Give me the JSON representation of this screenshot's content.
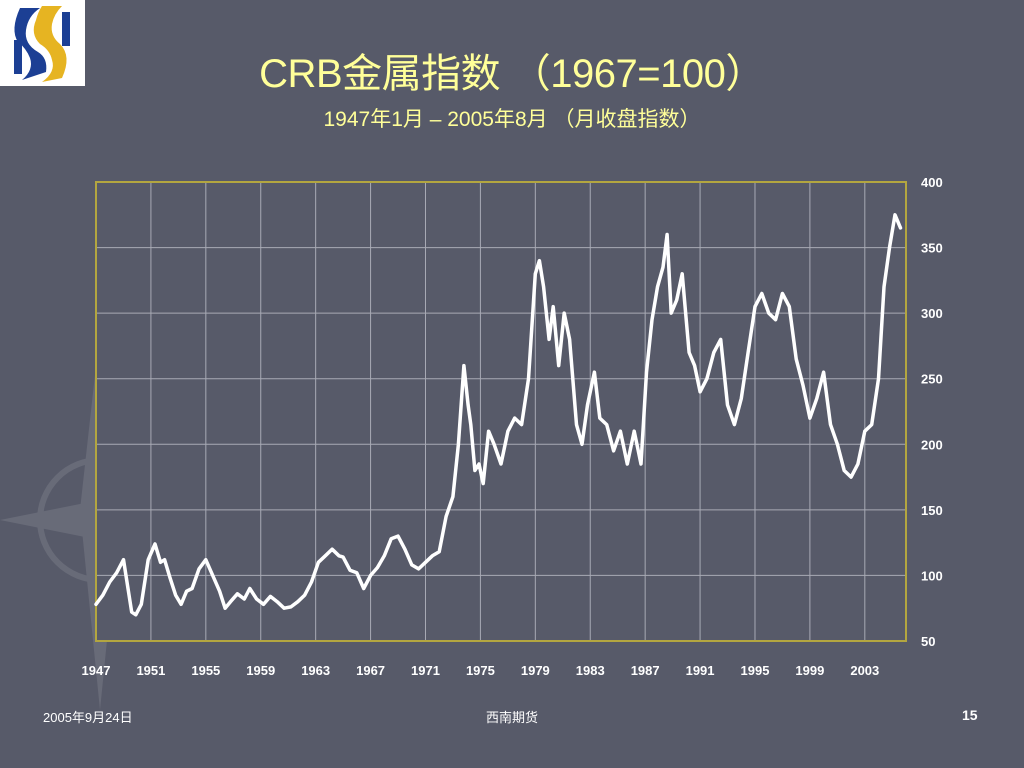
{
  "slide": {
    "title": "CRB金属指数 （1967=100）",
    "subtitle": "1947年1月 – 2005年8月 （月收盘指数）",
    "footer_date": "2005年9月24日",
    "footer_org": "西南期货",
    "page_number": "15"
  },
  "logo": {
    "icon": "company-s-logo-icon",
    "colors": [
      "#1c3f94",
      "#e6b422"
    ]
  },
  "colors": {
    "background": "#575a69",
    "title": "#ffff99",
    "frame": "#b3a640",
    "grid": "#a8aab5",
    "line": "#ffffff",
    "text": "#ffffff"
  },
  "chart_data": {
    "type": "line",
    "title": "CRB金属指数 （1967=100）",
    "subtitle": "1947年1月 – 2005年8月 （月收盘指数）",
    "xlabel": "",
    "ylabel": "",
    "xlim": [
      1947.0,
      2006.0
    ],
    "ylim": [
      50,
      400
    ],
    "x_ticks": [
      1947,
      1951,
      1955,
      1959,
      1963,
      1967,
      1971,
      1975,
      1979,
      1983,
      1987,
      1991,
      1995,
      1999,
      2003
    ],
    "y_ticks": [
      50,
      100,
      150,
      200,
      250,
      300,
      350,
      400
    ],
    "grid": true,
    "legend": "none",
    "series": [
      {
        "x": [
          1947.0,
          1947.5,
          1948.0,
          1948.5,
          1949.0,
          1949.6,
          1949.9,
          1950.3,
          1950.8,
          1951.3,
          1951.7,
          1952.0,
          1952.4,
          1952.8,
          1953.2,
          1953.6,
          1954.0,
          1954.5,
          1955.0,
          1955.5,
          1956.0,
          1956.4,
          1956.8,
          1957.3,
          1957.8,
          1958.2,
          1958.7,
          1959.2,
          1959.7,
          1960.2,
          1960.7,
          1961.2,
          1961.7,
          1962.2,
          1962.7,
          1963.2,
          1963.7,
          1964.2,
          1964.7,
          1965.0,
          1965.5,
          1966.0,
          1966.5,
          1967.0,
          1967.5,
          1968.0,
          1968.5,
          1969.0,
          1969.5,
          1970.0,
          1970.5,
          1971.0,
          1971.5,
          1972.0,
          1972.5,
          1973.0,
          1973.4,
          1973.8,
          1974.1,
          1974.3,
          1974.6,
          1974.9,
          1975.2,
          1975.6,
          1976.0,
          1976.5,
          1977.0,
          1977.5,
          1978.0,
          1978.5,
          1979.0,
          1979.3,
          1979.6,
          1980.0,
          1980.3,
          1980.7,
          1981.1,
          1981.5,
          1982.0,
          1982.4,
          1982.8,
          1983.3,
          1983.7,
          1984.2,
          1984.7,
          1985.2,
          1985.7,
          1986.2,
          1986.7,
          1987.1,
          1987.5,
          1987.9,
          1988.3,
          1988.6,
          1988.9,
          1989.3,
          1989.7,
          1990.2,
          1990.6,
          1991.0,
          1991.5,
          1992.0,
          1992.5,
          1993.0,
          1993.5,
          1994.0,
          1994.5,
          1995.0,
          1995.5,
          1996.0,
          1996.5,
          1997.0,
          1997.5,
          1998.0,
          1998.5,
          1999.0,
          1999.5,
          2000.0,
          2000.5,
          2001.0,
          2001.5,
          2002.0,
          2002.5,
          2003.0,
          2003.5,
          2004.0,
          2004.4,
          2004.8,
          2005.2,
          2005.6
        ],
        "y": [
          78,
          85,
          95,
          102,
          112,
          72,
          70,
          78,
          112,
          124,
          110,
          112,
          98,
          85,
          78,
          88,
          90,
          105,
          112,
          100,
          88,
          75,
          80,
          86,
          82,
          90,
          82,
          78,
          84,
          80,
          75,
          76,
          80,
          85,
          95,
          110,
          115,
          120,
          115,
          114,
          104,
          102,
          90,
          100,
          106,
          115,
          128,
          130,
          120,
          108,
          105,
          110,
          115,
          118,
          145,
          160,
          200,
          260,
          230,
          215,
          180,
          185,
          170,
          210,
          200,
          185,
          210,
          220,
          215,
          250,
          330,
          340,
          320,
          280,
          305,
          260,
          300,
          280,
          215,
          200,
          230,
          255,
          220,
          215,
          195,
          210,
          185,
          210,
          185,
          255,
          295,
          320,
          335,
          360,
          300,
          310,
          330,
          270,
          260,
          240,
          250,
          270,
          280,
          230,
          215,
          235,
          270,
          305,
          315,
          300,
          295,
          315,
          305,
          265,
          245,
          220,
          235,
          255,
          215,
          200,
          180,
          175,
          185,
          210,
          215,
          250,
          320,
          350,
          375,
          365
        ]
      }
    ]
  }
}
